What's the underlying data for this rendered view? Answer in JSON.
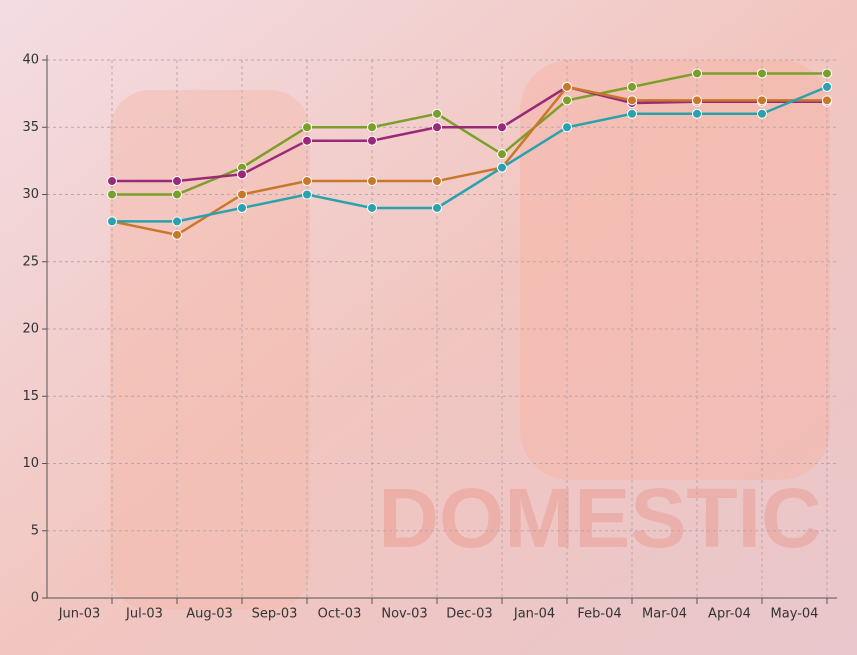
{
  "chart_data": {
    "type": "line",
    "watermark": "DOMESTIC",
    "categories": [
      "Jun-03",
      "Jul-03",
      "Aug-03",
      "Sep-03",
      "Oct-03",
      "Nov-03",
      "Dec-03",
      "Jan-04",
      "Feb-04",
      "Mar-04",
      "Apr-04",
      "May-04"
    ],
    "series": [
      {
        "color": "#7a9f2a",
        "values": [
          30,
          30,
          32,
          35,
          35,
          36,
          33,
          37,
          38,
          39,
          39,
          39
        ]
      },
      {
        "color": "#9a2a78",
        "values": [
          31,
          31,
          31.5,
          34,
          34,
          35,
          35,
          38,
          36.8,
          36.9,
          36.9,
          36.9
        ]
      },
      {
        "color": "#c7782a",
        "values": [
          28,
          27,
          30,
          31,
          31,
          31,
          32,
          38,
          37,
          37,
          37,
          37
        ]
      },
      {
        "color": "#2aa2ae",
        "values": [
          28,
          28,
          29,
          30,
          29,
          29,
          32,
          35,
          36,
          36,
          36,
          38
        ]
      }
    ],
    "ylim": [
      0,
      40
    ],
    "yticks": [
      0,
      5,
      10,
      15,
      20,
      25,
      30,
      35,
      40
    ],
    "grid": true
  }
}
